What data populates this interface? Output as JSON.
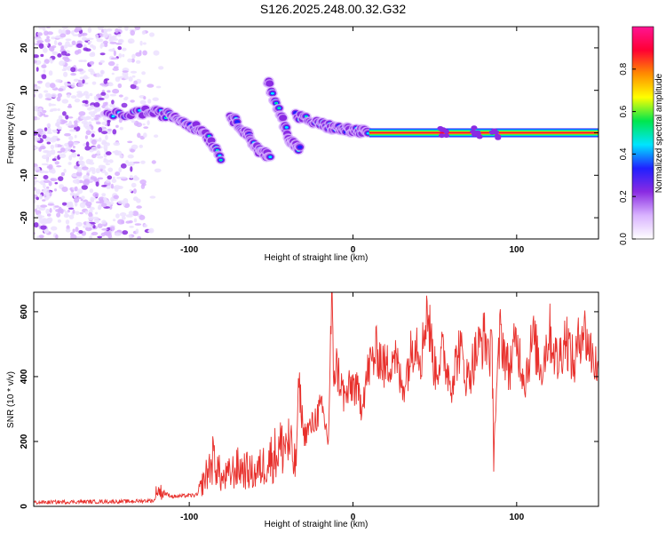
{
  "figure_title": "S126.2025.248.00.32.G32",
  "colormap_stops": [
    "#ffffff",
    "#d9b3ff",
    "#8a2be2",
    "#2020ff",
    "#00e5ff",
    "#00e64d",
    "#ffff00",
    "#ff8c00",
    "#ff0033",
    "#ff1493"
  ],
  "chart_data": [
    {
      "type": "heatmap",
      "title": "",
      "xlabel": "Height of straight line (km)",
      "ylabel": "Frequency (Hz)",
      "xlim": [
        -195,
        150
      ],
      "ylim": [
        -25,
        25
      ],
      "xticks": [
        -100,
        0,
        100
      ],
      "yticks": [
        -20,
        -10,
        0,
        10,
        20
      ],
      "colorbar": {
        "label": "Normalized spectral amplitude",
        "range": [
          0,
          1
        ],
        "ticks": [
          0.0,
          0.2,
          0.4,
          0.6,
          0.8
        ]
      },
      "features": [
        {
          "name": "noise cloud",
          "x_range": [
            -195,
            -115
          ],
          "freq_range": [
            -25,
            25
          ]
        },
        {
          "name": "descending arc 1",
          "x": [
            -150,
            -125,
            -110,
            -100,
            -90,
            -80
          ],
          "freq": [
            4,
            5,
            4,
            2,
            0,
            -6
          ]
        },
        {
          "name": "descending arc 2",
          "x": [
            -75,
            -65,
            -58,
            -50
          ],
          "freq": [
            4,
            0,
            -4,
            -6
          ]
        },
        {
          "name": "descending arc 3",
          "x": [
            -52,
            -44,
            -38,
            -32
          ],
          "freq": [
            12,
            4,
            -2,
            -4
          ]
        },
        {
          "name": "converging tail",
          "x": [
            -35,
            -20,
            -10,
            0,
            10
          ],
          "freq": [
            4,
            2,
            1,
            0.5,
            0
          ]
        },
        {
          "name": "steady carrier line",
          "x_range": [
            10,
            150
          ],
          "freq": 0
        }
      ]
    },
    {
      "type": "line",
      "title": "",
      "xlabel": "Height of straight line (km)",
      "ylabel": "SNR (10 * v/v)",
      "xlim": [
        -195,
        150
      ],
      "ylim": [
        0,
        660
      ],
      "xticks": [
        -100,
        0,
        100
      ],
      "yticks": [
        0,
        200,
        400,
        600
      ],
      "color": "#e8302c",
      "series": [
        {
          "name": "SNR",
          "x": [
            -195,
            -170,
            -140,
            -121,
            -120,
            -110,
            -95,
            -85,
            -80,
            -70,
            -60,
            -50,
            -40,
            -35,
            -33,
            -30,
            -25,
            -20,
            -18,
            -15,
            -13,
            -12,
            -10,
            -5,
            0,
            5,
            10,
            15,
            20,
            25,
            30,
            35,
            38,
            42,
            45,
            50,
            55,
            60,
            65,
            70,
            75,
            80,
            85,
            86,
            90,
            95,
            100,
            105,
            110,
            115,
            120,
            125,
            130,
            135,
            140,
            145,
            150
          ],
          "y": [
            12,
            14,
            15,
            18,
            50,
            30,
            35,
            150,
            80,
            120,
            100,
            150,
            200,
            120,
            380,
            220,
            250,
            300,
            280,
            200,
            650,
            420,
            430,
            330,
            380,
            320,
            430,
            480,
            420,
            480,
            360,
            460,
            530,
            460,
            620,
            420,
            470,
            380,
            490,
            390,
            470,
            520,
            460,
            190,
            540,
            420,
            510,
            390,
            520,
            420,
            540,
            440,
            530,
            430,
            560,
            480,
            420
          ]
        }
      ]
    }
  ]
}
